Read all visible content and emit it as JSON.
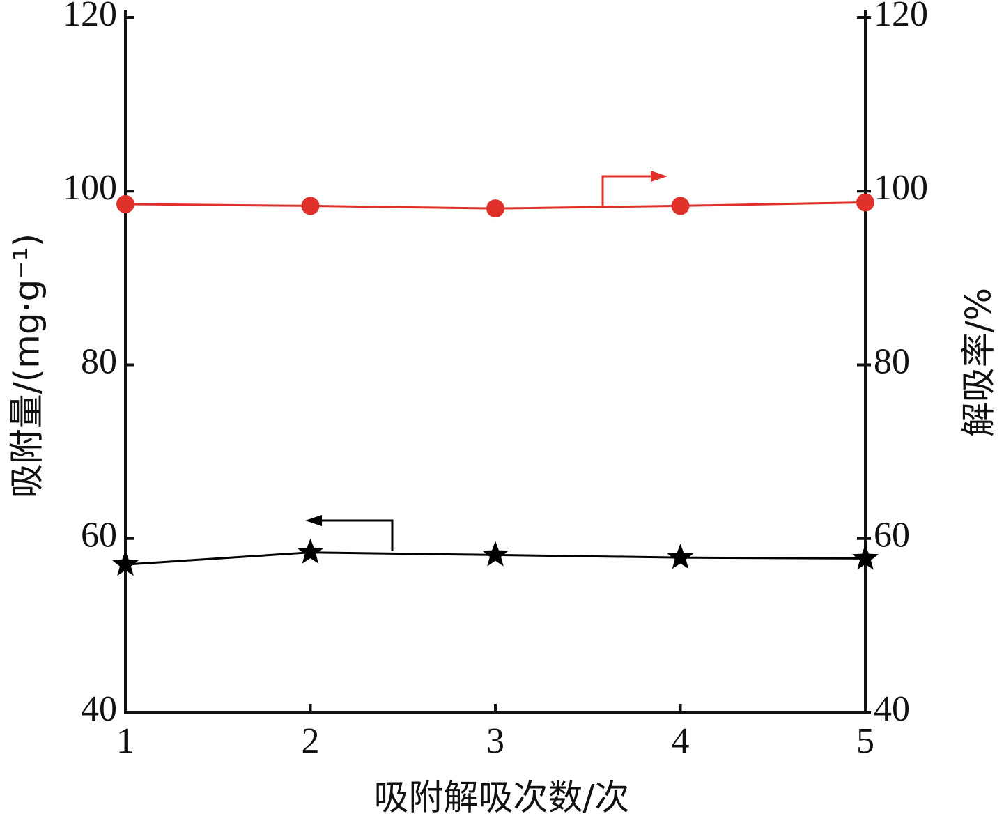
{
  "chart_data": {
    "type": "line",
    "x_label": "吸附解吸次数/次",
    "y_label": "吸附量/(mg·g⁻¹)",
    "y2_label": "解吸率/%",
    "x": [
      1,
      2,
      3,
      4,
      5
    ],
    "xlim": [
      1,
      5
    ],
    "xticks": [
      1,
      2,
      3,
      4,
      5
    ],
    "ylim": [
      40,
      120
    ],
    "yticks": [
      40,
      60,
      80,
      100,
      120
    ],
    "y2lim": [
      40,
      120
    ],
    "y2ticks": [
      40,
      60,
      80,
      100,
      120
    ],
    "series": [
      {
        "color": "#000000",
        "marker": "star",
        "values": [
          57.0,
          58.4,
          58.1,
          57.8,
          57.7
        ]
      },
      {
        "color": "#e0302a",
        "marker": "circle",
        "axis": "y2",
        "values": [
          98.5,
          98.3,
          98.0,
          98.3,
          98.7
        ]
      }
    ]
  }
}
